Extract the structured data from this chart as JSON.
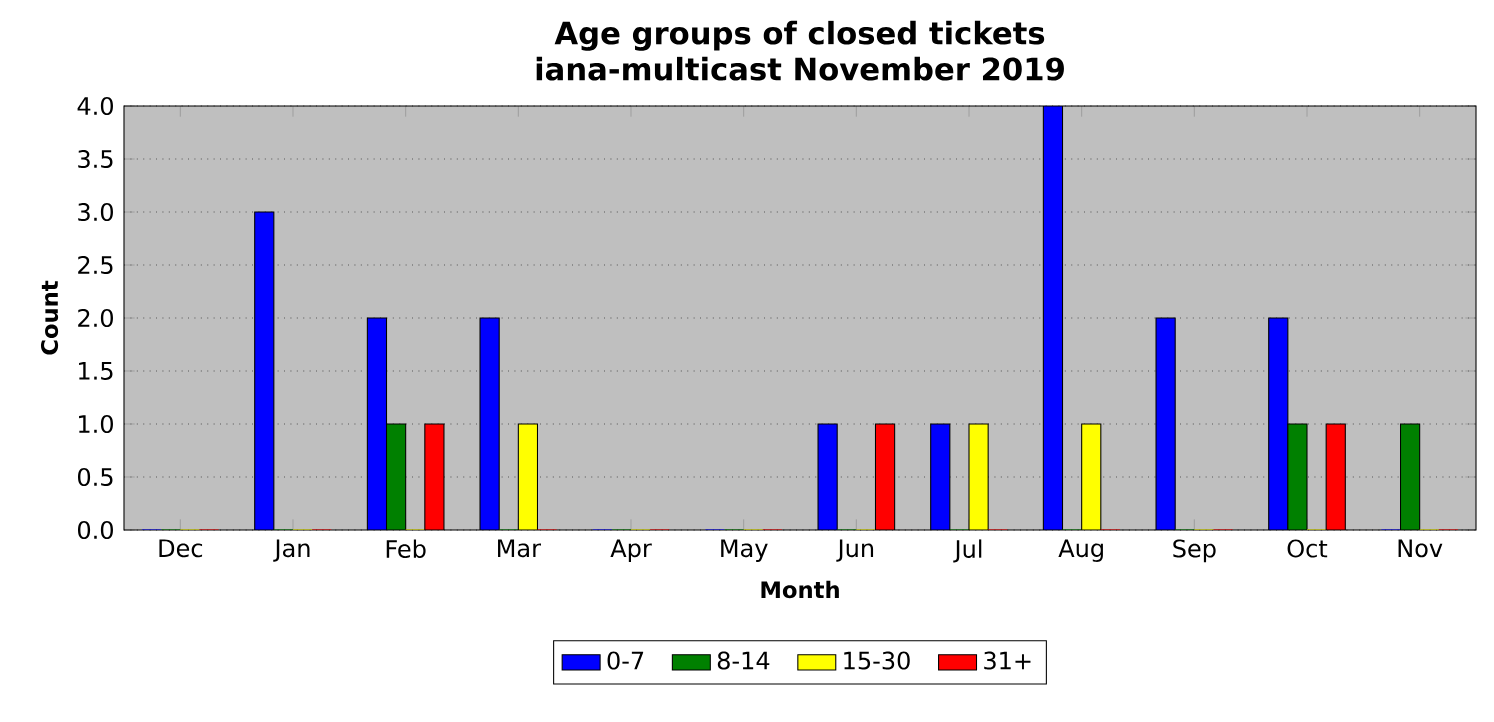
{
  "chart_data": {
    "type": "bar",
    "title": "Age groups of closed tickets",
    "subtitle": "iana-multicast November 2019",
    "xlabel": "Month",
    "ylabel": "Count",
    "categories": [
      "Dec",
      "Jan",
      "Feb",
      "Mar",
      "Apr",
      "May",
      "Jun",
      "Jul",
      "Aug",
      "Sep",
      "Oct",
      "Nov"
    ],
    "series": [
      {
        "name": "0-7",
        "color": "#0000ff",
        "values": [
          0,
          3,
          2,
          2,
          0,
          0,
          1,
          1,
          4,
          2,
          2,
          0
        ]
      },
      {
        "name": "8-14",
        "color": "#008000",
        "values": [
          0,
          0,
          1,
          0,
          0,
          0,
          0,
          0,
          0,
          0,
          1,
          1
        ]
      },
      {
        "name": "15-30",
        "color": "#ffff00",
        "values": [
          0,
          0,
          0,
          1,
          0,
          0,
          0,
          1,
          1,
          0,
          0,
          0
        ]
      },
      {
        "name": "31+",
        "color": "#ff0000",
        "values": [
          0,
          0,
          1,
          0,
          0,
          0,
          1,
          0,
          0,
          0,
          1,
          0
        ]
      }
    ],
    "ylim": [
      0,
      4
    ],
    "yticks": [
      {
        "value": 0,
        "label": "0.0"
      },
      {
        "value": 0.5,
        "label": "0.5"
      },
      {
        "value": 1,
        "label": "1.0"
      },
      {
        "value": 1.5,
        "label": "1.5"
      },
      {
        "value": 2,
        "label": "2.0"
      },
      {
        "value": 2.5,
        "label": "2.5"
      },
      {
        "value": 3,
        "label": "3.0"
      },
      {
        "value": 3.5,
        "label": "3.5"
      },
      {
        "value": 4,
        "label": "4.0"
      }
    ],
    "grid": "y",
    "legend": "bottom"
  }
}
